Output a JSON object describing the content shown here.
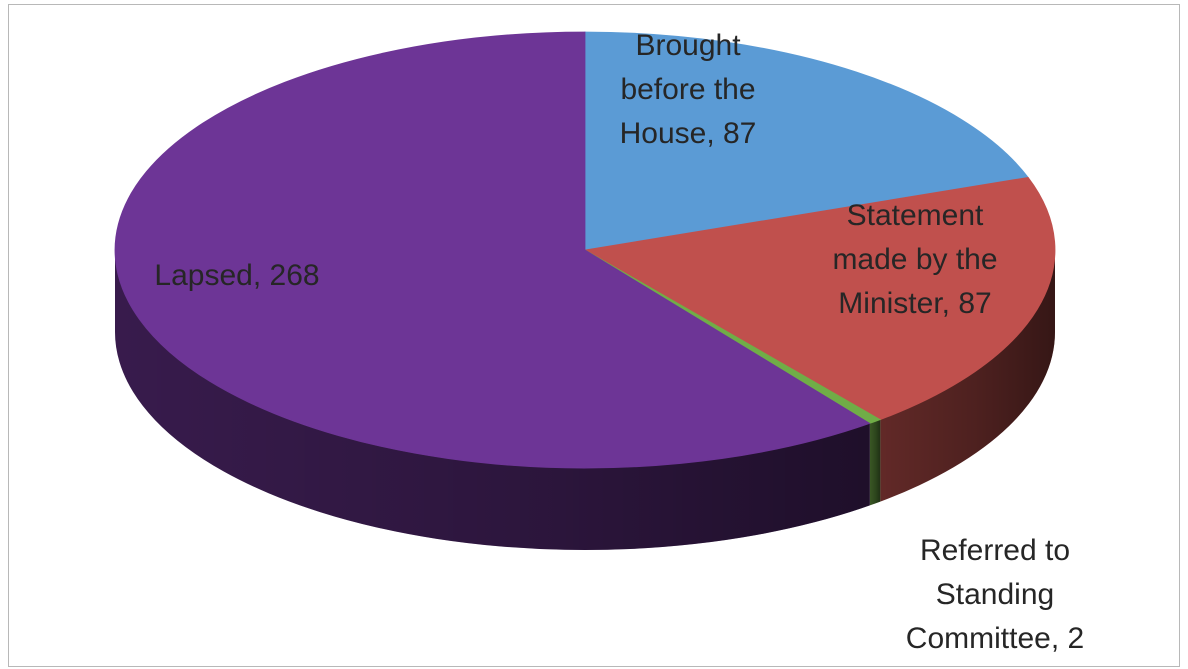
{
  "chart_data": {
    "type": "pie",
    "style": "3d",
    "start_angle_deg": 0,
    "direction": "clockwise",
    "title": "",
    "legend": "none",
    "slices": [
      {
        "label_lines": [
          "Brought",
          "before the",
          "House, 87"
        ],
        "name": "Brought before the House",
        "value": 87,
        "color": "#5b9bd5"
      },
      {
        "label_lines": [
          "Statement",
          "made by the",
          "Minister, 87"
        ],
        "name": "Statement made by the Minister",
        "value": 87,
        "color": "#c0504d"
      },
      {
        "label_lines": [
          "Referred to",
          "Standing",
          "Committee, 2"
        ],
        "name": "Referred to Standing Committee",
        "value": 2,
        "color": "#70ad47"
      },
      {
        "label_lines": [
          "Lapsed, 268"
        ],
        "name": "Lapsed",
        "value": 268,
        "color": "#6d3596"
      }
    ]
  }
}
